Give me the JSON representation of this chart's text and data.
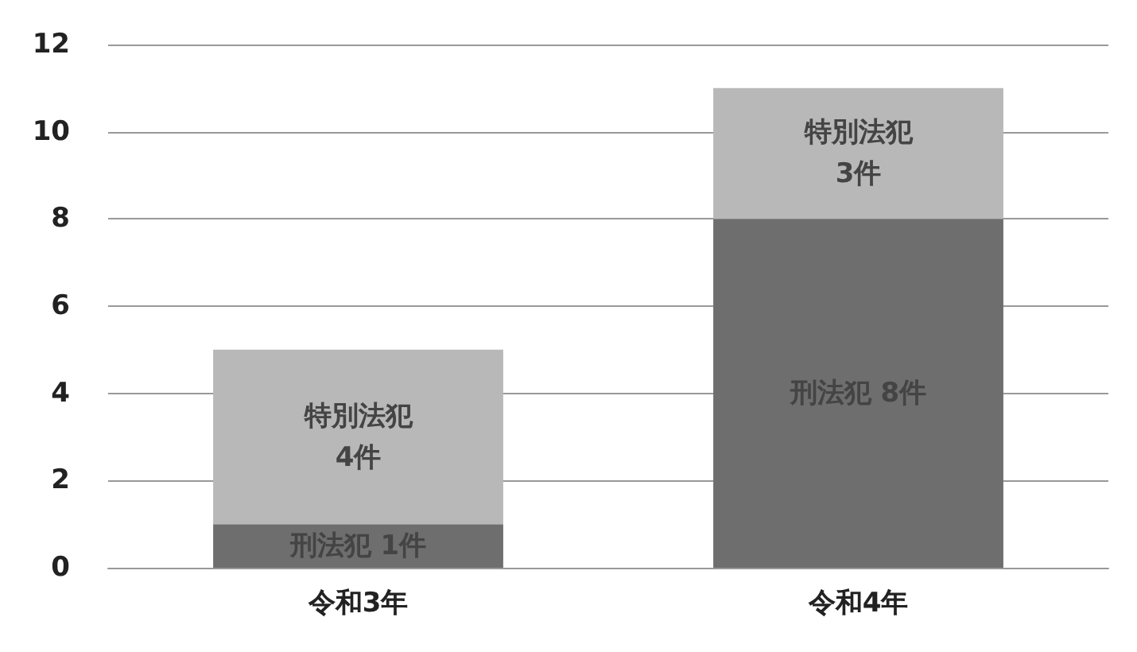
{
  "chart_data": {
    "type": "bar",
    "stacked": true,
    "categories": [
      "令和3年",
      "令和4年"
    ],
    "series": [
      {
        "color": "#6e6e6e",
        "values": [
          1,
          8
        ],
        "value_labels": [
          "刑法犯 1件",
          "刑法犯 8件"
        ]
      },
      {
        "color": "#b8b8b8",
        "values": [
          4,
          3
        ],
        "value_labels": [
          "特別法犯\n4件",
          "特別法犯\n3件"
        ]
      }
    ],
    "ylim": [
      0,
      12
    ],
    "yticks": [
      0,
      2,
      4,
      6,
      8,
      10,
      12
    ],
    "grid": "y"
  }
}
